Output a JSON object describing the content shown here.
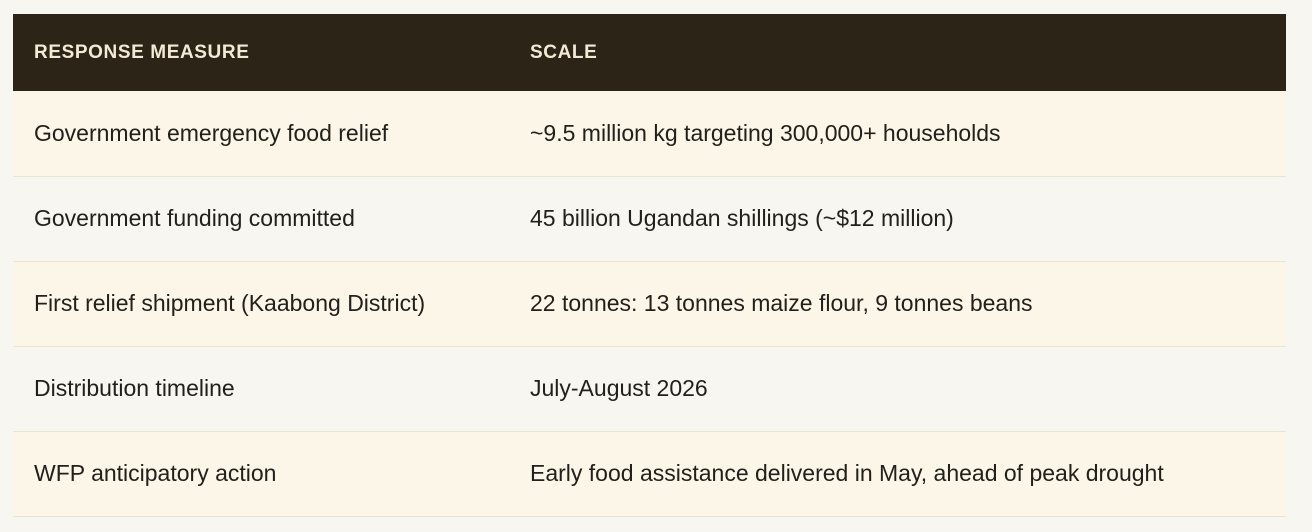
{
  "table": {
    "headers": [
      "RESPONSE MEASURE",
      "SCALE"
    ],
    "rows": [
      {
        "measure": "Government emergency food relief",
        "scale": "~9.5 million kg targeting 300,000+ households"
      },
      {
        "measure": "Government funding committed",
        "scale": "45 billion Ugandan shillings (~$12 million)"
      },
      {
        "measure": "First relief shipment (Kaabong District)",
        "scale": "22 tonnes: 13 tonnes maize flour, 9 tonnes beans"
      },
      {
        "measure": "Distribution timeline",
        "scale": "July-August 2026"
      },
      {
        "measure": "WFP anticipatory action",
        "scale": "Early food assistance delivered in May, ahead of peak drought"
      }
    ]
  },
  "colors": {
    "header_bg": "#2b2417",
    "header_text": "#f3ead6",
    "row_tint": "#fcf6e9",
    "page_bg": "#f8f6f0",
    "body_text": "#22201b"
  }
}
